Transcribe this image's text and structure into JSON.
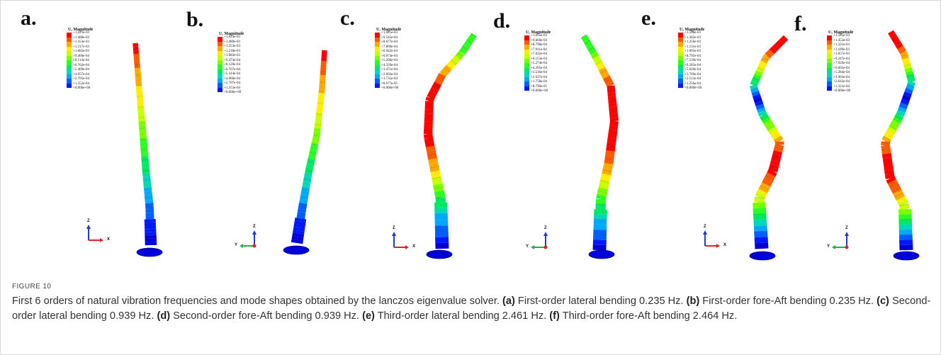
{
  "figure": {
    "panels": [
      {
        "letter": "a.",
        "legend_title": "U, Magnitude",
        "legend_values": [
          "+1.623e-03",
          "+1.488e-03",
          "+1.353e-03",
          "+1.217e-03",
          "+1.082e-03",
          "+9.466e-04",
          "+8.114e-04",
          "+6.762e-04",
          "+5.409e-04",
          "+4.057e-04",
          "+2.705e-04",
          "+1.352e-04",
          "+0.000e+00"
        ],
        "axis_right": "X",
        "axis_up": "Z",
        "mode_shape": "first-order lateral bending"
      },
      {
        "letter": "b.",
        "legend_title": "U, Magnitude",
        "legend_values": [
          "+1.624e-03",
          "+1.489e-03",
          "+1.353e-03",
          "+1.218e-03",
          "+1.083e-03",
          "+9.474e-04",
          "+8.120e-04",
          "+6.767e-04",
          "+5.414e-04",
          "+4.060e-04",
          "+2.707e-04",
          "+1.353e-04",
          "+0.000e+00"
        ],
        "axis_right": "Y",
        "axis_up": "Z",
        "mode_shape": "first-order fore-aft bending"
      },
      {
        "letter": "c.",
        "legend_title": "U, Magnitude",
        "legend_values": [
          "+1.041e-03",
          "+9.545e-04",
          "+8.677e-04",
          "+7.809e-04",
          "+6.942e-04",
          "+6.074e-04",
          "+5.206e-04",
          "+4.339e-04",
          "+3.471e-04",
          "+2.603e-04",
          "+1.735e-04",
          "+8.677e-05",
          "+0.000e+00"
        ],
        "axis_right": "X",
        "axis_up": "Z",
        "mode_shape": "second-order lateral bending"
      },
      {
        "letter": "d.",
        "legend_title": "U, Magnitude",
        "legend_values": [
          "+1.055e-03",
          "+9.669e-04",
          "+8.790e-04",
          "+7.911e-04",
          "+7.032e-04",
          "+6.153e-04",
          "+5.274e-04",
          "+4.395e-04",
          "+3.516e-04",
          "+2.637e-04",
          "+1.758e-04",
          "+8.790e-05",
          "+0.000e+00"
        ],
        "axis_right": "Y",
        "axis_up": "Z",
        "mode_shape": "second-order fore-aft bending"
      },
      {
        "letter": "e.",
        "legend_title": "U, Magnitude",
        "legend_values": [
          "+1.508e-03",
          "+1.382e-03",
          "+1.256e-03",
          "+1.131e-03",
          "+1.005e-03",
          "+8.795e-04",
          "+7.539e-04",
          "+6.282e-04",
          "+5.026e-04",
          "+3.769e-04",
          "+2.513e-04",
          "+1.256e-04",
          "+0.000e+00"
        ],
        "axis_right": "X",
        "axis_up": "Z",
        "mode_shape": "third-order lateral bending"
      },
      {
        "letter": "f.",
        "legend_title": "U, Magnitude",
        "legend_values": [
          "+1.585e-03",
          "+1.453e-03",
          "+1.321e-03",
          "+1.189e-03",
          "+1.057e-03",
          "+9.247e-04",
          "+7.926e-04",
          "+6.605e-04",
          "+5.284e-04",
          "+3.963e-04",
          "+2.642e-04",
          "+1.321e-04",
          "+0.000e+00"
        ],
        "axis_right": "Y",
        "axis_up": "Z",
        "mode_shape": "third-order fore-aft bending"
      }
    ],
    "legend_colors": [
      "#ff0000",
      "#ff5a00",
      "#ffa800",
      "#ffee00",
      "#c8ff00",
      "#7aff00",
      "#2aff20",
      "#00e864",
      "#00d8b8",
      "#00a8ff",
      "#0060ff",
      "#0018ff",
      "#0000d8"
    ]
  },
  "caption": {
    "label": "FIGURE 10",
    "intro": "First 6 orders of natural vibration frequencies and mode shapes obtained by the lanczos eigenvalue solver.",
    "items": [
      {
        "tag": "(a)",
        "text": "First-order lateral bending 0.235 Hz."
      },
      {
        "tag": "(b)",
        "text": "First-order fore-Aft bending 0.235 Hz."
      },
      {
        "tag": "(c)",
        "text": "Second-order lateral bending 0.939 Hz."
      },
      {
        "tag": "(d)",
        "text": "Second-order fore-Aft bending 0.939 Hz."
      },
      {
        "tag": "(e)",
        "text": "Third-order lateral bending 2.461 Hz."
      },
      {
        "tag": "(f)",
        "text": "Third-order fore-Aft bending 2.464 Hz."
      }
    ]
  }
}
